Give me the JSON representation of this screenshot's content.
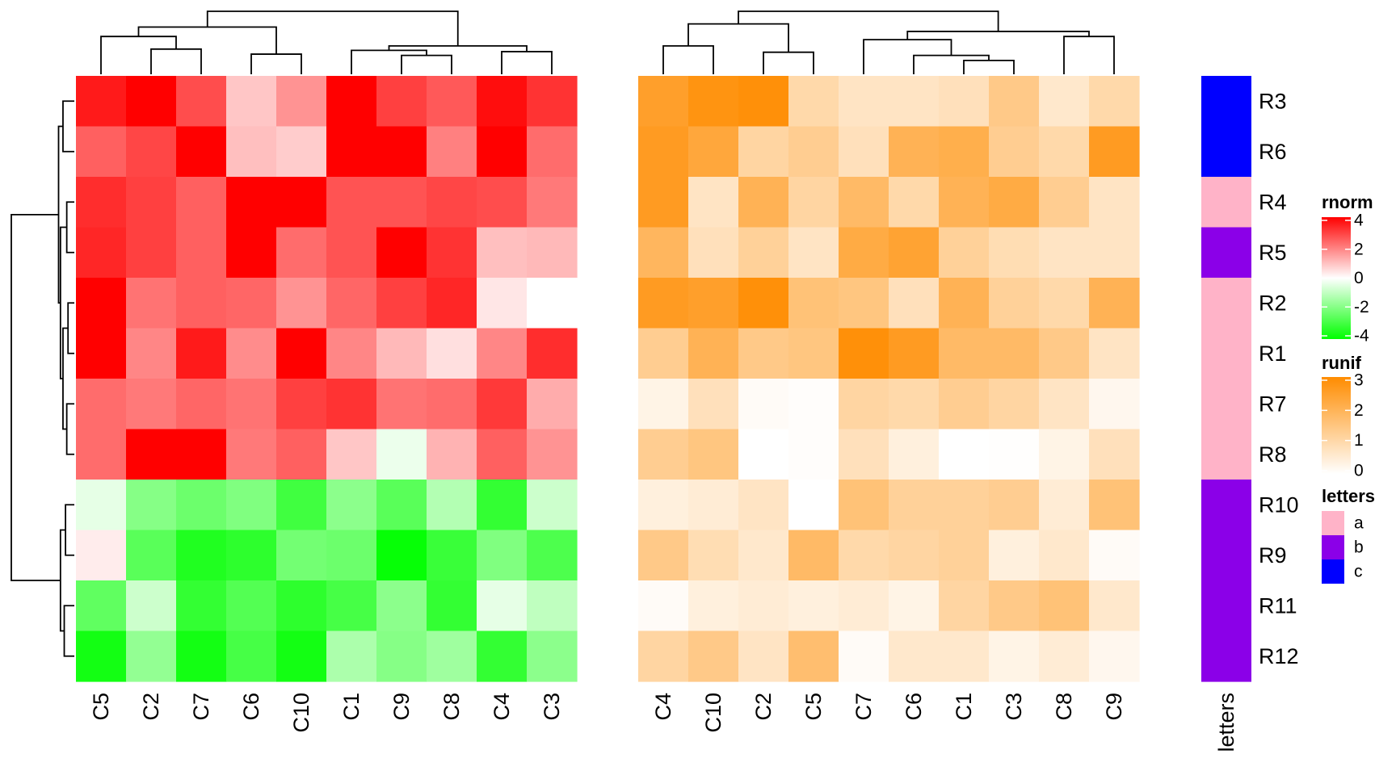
{
  "chart_data": {
    "type": "heatmap",
    "rows_order": [
      "R3",
      "R6",
      "R4",
      "R5",
      "R2",
      "R1",
      "R7",
      "R8",
      "R10",
      "R9",
      "R11",
      "R12"
    ],
    "row_annotation": {
      "name": "letters",
      "values": [
        "c",
        "c",
        "a",
        "b",
        "a",
        "a",
        "a",
        "a",
        "b",
        "b",
        "b",
        "b"
      ]
    },
    "heatmaps": [
      {
        "name": "rnorm",
        "columns": [
          "C5",
          "C2",
          "C7",
          "C6",
          "C10",
          "C1",
          "C9",
          "C8",
          "C4",
          "C3"
        ],
        "values": [
          [
            3.6,
            4.0,
            2.8,
            0.9,
            1.7,
            4.0,
            3.0,
            2.6,
            3.8,
            3.2
          ],
          [
            2.5,
            2.9,
            4.0,
            1.0,
            0.8,
            4.0,
            4.0,
            2.0,
            4.0,
            2.3
          ],
          [
            3.3,
            3.0,
            2.5,
            4.0,
            4.0,
            2.7,
            2.7,
            2.9,
            2.8,
            2.1
          ],
          [
            3.4,
            3.0,
            2.5,
            4.0,
            2.3,
            2.7,
            4.0,
            3.2,
            1.0,
            1.1
          ],
          [
            4.0,
            2.2,
            2.5,
            2.4,
            1.7,
            2.4,
            3.0,
            3.4,
            0.4,
            0.0
          ],
          [
            4.0,
            1.9,
            3.6,
            1.8,
            4.0,
            1.9,
            1.1,
            0.5,
            1.9,
            3.3
          ],
          [
            2.3,
            2.1,
            2.4,
            2.2,
            3.0,
            3.2,
            2.2,
            2.3,
            3.1,
            1.3
          ],
          [
            2.3,
            4.0,
            4.0,
            2.1,
            2.5,
            0.9,
            -0.3,
            1.2,
            2.5,
            1.7
          ],
          [
            -0.4,
            -1.9,
            -2.3,
            -2.0,
            -3.0,
            -1.8,
            -2.6,
            -1.2,
            -3.2,
            -0.8
          ],
          [
            0.3,
            -2.6,
            -3.5,
            -3.3,
            -2.2,
            -2.3,
            -3.9,
            -3.1,
            -2.0,
            -2.8
          ],
          [
            -2.5,
            -0.8,
            -3.2,
            -2.7,
            -3.3,
            -2.9,
            -1.8,
            -3.2,
            -0.4,
            -1.0
          ],
          [
            -3.7,
            -1.7,
            -3.7,
            -2.9,
            -3.7,
            -1.3,
            -1.9,
            -1.5,
            -3.2,
            -1.8
          ]
        ]
      },
      {
        "name": "runif",
        "columns": [
          "C4",
          "C10",
          "C2",
          "C5",
          "C7",
          "C6",
          "C1",
          "C3",
          "C8",
          "C9"
        ],
        "values": [
          [
            2.5,
            2.8,
            2.9,
            1.0,
            0.7,
            0.7,
            0.8,
            1.4,
            0.6,
            1.0
          ],
          [
            2.6,
            2.3,
            1.1,
            1.3,
            0.8,
            2.0,
            2.1,
            1.3,
            1.0,
            2.6
          ],
          [
            2.6,
            0.7,
            2.0,
            1.1,
            1.8,
            1.0,
            2.0,
            2.2,
            1.3,
            0.7
          ],
          [
            1.9,
            0.8,
            1.2,
            0.7,
            2.2,
            2.4,
            1.2,
            0.9,
            0.7,
            0.7
          ],
          [
            2.6,
            2.5,
            2.9,
            1.6,
            1.5,
            0.8,
            2.0,
            1.2,
            1.0,
            2.0
          ],
          [
            1.3,
            2.0,
            1.4,
            1.5,
            2.9,
            2.6,
            1.8,
            1.8,
            1.4,
            0.7
          ],
          [
            0.3,
            0.8,
            0.1,
            0.05,
            1.1,
            1.0,
            1.3,
            1.1,
            0.7,
            0.2
          ],
          [
            1.3,
            1.5,
            0.0,
            0.05,
            0.8,
            0.4,
            0.0,
            0.02,
            0.3,
            0.8
          ],
          [
            0.4,
            0.5,
            0.7,
            0.0,
            1.6,
            1.2,
            1.2,
            1.3,
            0.5,
            1.6
          ],
          [
            1.4,
            0.9,
            0.6,
            1.8,
            1.0,
            1.1,
            1.2,
            0.4,
            0.6,
            0.1
          ],
          [
            0.1,
            0.4,
            0.5,
            0.4,
            0.5,
            0.3,
            1.1,
            1.4,
            1.6,
            0.6
          ],
          [
            1.1,
            1.4,
            0.7,
            1.7,
            0.1,
            0.6,
            0.6,
            0.3,
            0.5,
            0.2
          ]
        ]
      }
    ],
    "legends": [
      {
        "title": "rnorm",
        "ticks": [
          "4",
          "2",
          "0",
          "-2",
          "-4"
        ],
        "colors": [
          "#ff0000",
          "#ffffff",
          "#00ff00"
        ]
      },
      {
        "title": "runif",
        "ticks": [
          "3",
          "2",
          "1",
          "0"
        ],
        "colors": [
          "#ff8c00",
          "#ffffff"
        ]
      },
      {
        "title": "letters",
        "items": [
          {
            "label": "a",
            "color": "#ffb3c8"
          },
          {
            "label": "b",
            "color": "#8b00e8"
          },
          {
            "label": "c",
            "color": "#0000ff"
          }
        ]
      }
    ],
    "annotation_axis_label": "letters"
  }
}
